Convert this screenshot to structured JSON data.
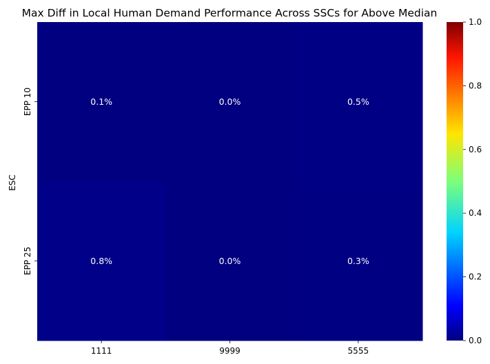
{
  "chart_data": {
    "type": "heatmap",
    "title": "Max Diff in Local Human Demand Performance Across SSCs for Above Median",
    "xlabel": "",
    "ylabel": "ESC",
    "x_categories": [
      "1111",
      "9999",
      "5555"
    ],
    "y_categories": [
      "EPP 10",
      "EPP 25"
    ],
    "values": [
      [
        0.001,
        0.0,
        0.005
      ],
      [
        0.008,
        0.0,
        0.003
      ]
    ],
    "cell_labels": [
      [
        "0.1%",
        "0.0%",
        "0.5%"
      ],
      [
        "0.8%",
        "0.0%",
        "0.3%"
      ]
    ],
    "colormap": "jet",
    "vmin": 0.0,
    "vmax": 1.0,
    "colorbar_ticks": [
      {
        "value": 0.0,
        "label": "0.0"
      },
      {
        "value": 0.2,
        "label": "0.2"
      },
      {
        "value": 0.4,
        "label": "0.4"
      },
      {
        "value": 0.6,
        "label": "0.6"
      },
      {
        "value": 0.8,
        "label": "0.8"
      },
      {
        "value": 1.0,
        "label": "1.0"
      }
    ],
    "grid": false,
    "legend": "colorbar-right"
  }
}
